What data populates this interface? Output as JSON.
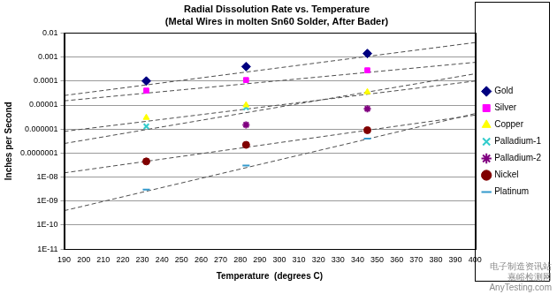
{
  "chart_data": {
    "type": "scatter",
    "title": "Radial Dissolution Rate vs. Temperature",
    "subtitle": "(Metal Wires in molten Sn60 Solder, After Bader)",
    "x_label": "Temperature  (degrees C)",
    "y_label": "Inches per Second",
    "x": [
      232,
      283,
      345
    ],
    "series": [
      {
        "name": "Gold",
        "color": "#000080",
        "marker": "diamond",
        "values": [
          0.0001,
          0.0004,
          0.0014
        ],
        "trend": {
          "x": [
            190,
            400
          ],
          "values": [
            2.5e-05,
            0.004
          ]
        }
      },
      {
        "name": "Silver",
        "color": "#ff00ff",
        "marker": "square",
        "values": [
          4e-05,
          0.00011,
          0.00028
        ],
        "trend": {
          "x": [
            190,
            400
          ],
          "values": [
            1.5e-05,
            0.0006
          ]
        }
      },
      {
        "name": "Copper",
        "color": "#ffff00",
        "marker": "triangle",
        "values": [
          3e-06,
          1e-05,
          3.5e-05
        ],
        "trend": {
          "x": [
            190,
            400
          ],
          "values": [
            8e-07,
            0.0001
          ]
        }
      },
      {
        "name": "Palladium-1",
        "color": "#33cccc",
        "marker": "x",
        "values": [
          1.3e-06,
          8e-06,
          null
        ],
        "trend": {
          "x": [
            190,
            400
          ],
          "values": [
            2.5e-07,
            0.0002
          ]
        }
      },
      {
        "name": "Palladium-2",
        "color": "#800080",
        "marker": "star",
        "values": [
          null,
          1.5e-06,
          7e-06
        ]
      },
      {
        "name": "Nickel",
        "color": "#800000",
        "marker": "circle",
        "values": [
          4.5e-08,
          2.2e-07,
          9e-07
        ],
        "trend": {
          "x": [
            190,
            400
          ],
          "values": [
            1.5e-08,
            3.8e-06
          ]
        }
      },
      {
        "name": "Platinum",
        "color": "#3399cc",
        "marker": "dash",
        "values": [
          3e-09,
          3e-08,
          4e-07
        ],
        "trend": {
          "x": [
            190,
            400
          ],
          "values": [
            4e-10,
            4.4e-06
          ]
        }
      }
    ],
    "log": "y",
    "xlim": [
      190,
      400
    ],
    "xticks": [
      190,
      200,
      210,
      220,
      230,
      240,
      250,
      260,
      270,
      280,
      290,
      300,
      310,
      320,
      330,
      340,
      350,
      360,
      370,
      380,
      390,
      400
    ],
    "ylim": [
      1e-11,
      0.01
    ],
    "yticks": [
      {
        "value": 1e-11,
        "label": "1E-11"
      },
      {
        "value": 1e-10,
        "label": "1E-10"
      },
      {
        "value": 1e-09,
        "label": "1E-09"
      },
      {
        "value": 1e-08,
        "label": "1E-08"
      },
      {
        "value": 1e-07,
        "label": "0.0000001"
      },
      1e-06,
      1e-05,
      0.0001,
      0.001,
      0.01
    ],
    "grid": true,
    "legend": "right",
    "annotations": [
      "电子制造资讯站",
      "嘉峪检测网",
      "AnyTesting.com"
    ]
  }
}
